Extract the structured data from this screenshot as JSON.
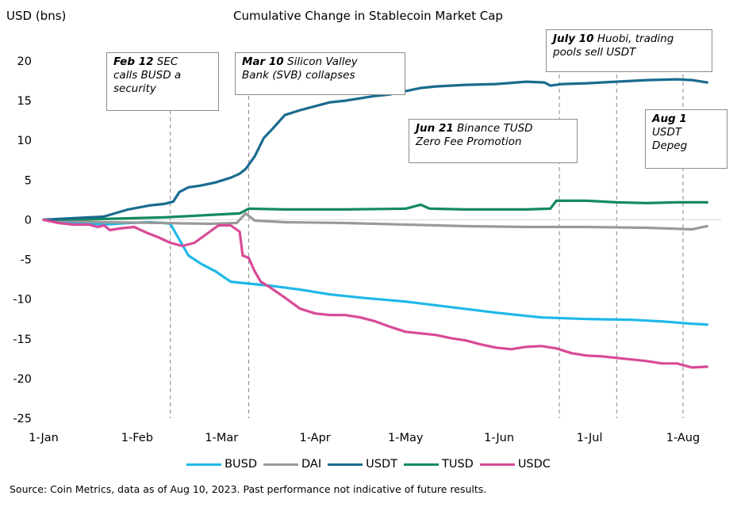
{
  "chart_data": {
    "type": "line",
    "title": "Cumulative Change in Stablecoin Market Cap",
    "ylabel": "USD (bns)",
    "xlabel": "",
    "ylim": [
      -25,
      20
    ],
    "yticks": [
      "20",
      "15",
      "10",
      "5",
      "0",
      "-5",
      "-10",
      "-15",
      "-20",
      "-25"
    ],
    "xlim": [
      0,
      222
    ],
    "xticks": [
      {
        "day": 0,
        "label": "1-Jan"
      },
      {
        "day": 31,
        "label": "1-Feb"
      },
      {
        "day": 59,
        "label": "1-Mar"
      },
      {
        "day": 90,
        "label": "1-Apr"
      },
      {
        "day": 120,
        "label": "1-May"
      },
      {
        "day": 151,
        "label": "1-Jun"
      },
      {
        "day": 181,
        "label": "1-Jul"
      },
      {
        "day": 212,
        "label": "1-Aug"
      }
    ],
    "series": [
      {
        "name": "BUSD",
        "color": "#1fb8e8",
        "points": [
          [
            0,
            0
          ],
          [
            10,
            -0.3
          ],
          [
            20,
            -0.6
          ],
          [
            28,
            -0.4
          ],
          [
            35,
            -0.3
          ],
          [
            40,
            -0.4
          ],
          [
            42,
            -0.5
          ],
          [
            45,
            -2.5
          ],
          [
            48,
            -4.5
          ],
          [
            52,
            -5.5
          ],
          [
            57,
            -6.5
          ],
          [
            62,
            -7.8
          ],
          [
            67,
            -8.0
          ],
          [
            75,
            -8.3
          ],
          [
            85,
            -8.8
          ],
          [
            95,
            -9.4
          ],
          [
            105,
            -9.8
          ],
          [
            120,
            -10.3
          ],
          [
            135,
            -11
          ],
          [
            150,
            -11.7
          ],
          [
            165,
            -12.3
          ],
          [
            180,
            -12.5
          ],
          [
            195,
            -12.6
          ],
          [
            205,
            -12.8
          ],
          [
            215,
            -13.1
          ],
          [
            220,
            -13.2
          ]
        ]
      },
      {
        "name": "DAI",
        "color": "#9a9a9a",
        "points": [
          [
            0,
            0
          ],
          [
            20,
            -0.3
          ],
          [
            40,
            -0.4
          ],
          [
            55,
            -0.5
          ],
          [
            64,
            -0.4
          ],
          [
            67,
            0.8
          ],
          [
            70,
            -0.1
          ],
          [
            80,
            -0.3
          ],
          [
            100,
            -0.4
          ],
          [
            120,
            -0.6
          ],
          [
            140,
            -0.8
          ],
          [
            160,
            -0.9
          ],
          [
            180,
            -0.9
          ],
          [
            200,
            -1.0
          ],
          [
            215,
            -1.2
          ],
          [
            220,
            -0.8
          ]
        ]
      },
      {
        "name": "USDT",
        "color": "#1a6b8f",
        "points": [
          [
            0,
            0
          ],
          [
            10,
            0.2
          ],
          [
            20,
            0.4
          ],
          [
            28,
            1.3
          ],
          [
            35,
            1.8
          ],
          [
            40,
            2.0
          ],
          [
            43,
            2.3
          ],
          [
            45,
            3.5
          ],
          [
            48,
            4.1
          ],
          [
            52,
            4.3
          ],
          [
            57,
            4.7
          ],
          [
            62,
            5.3
          ],
          [
            65,
            5.8
          ],
          [
            67,
            6.4
          ],
          [
            70,
            8.0
          ],
          [
            73,
            10.3
          ],
          [
            76,
            11.5
          ],
          [
            80,
            13.2
          ],
          [
            85,
            13.8
          ],
          [
            90,
            14.3
          ],
          [
            95,
            14.8
          ],
          [
            100,
            15.0
          ],
          [
            105,
            15.3
          ],
          [
            110,
            15.6
          ],
          [
            115,
            15.8
          ],
          [
            120,
            16.2
          ],
          [
            125,
            16.6
          ],
          [
            130,
            16.8
          ],
          [
            135,
            16.9
          ],
          [
            140,
            17.0
          ],
          [
            150,
            17.1
          ],
          [
            160,
            17.4
          ],
          [
            166,
            17.3
          ],
          [
            168,
            16.9
          ],
          [
            172,
            17.1
          ],
          [
            180,
            17.2
          ],
          [
            190,
            17.4
          ],
          [
            200,
            17.6
          ],
          [
            210,
            17.7
          ],
          [
            215,
            17.6
          ],
          [
            220,
            17.3
          ]
        ]
      },
      {
        "name": "TUSD",
        "color": "#158a5e",
        "points": [
          [
            0,
            0
          ],
          [
            20,
            0.1
          ],
          [
            40,
            0.3
          ],
          [
            55,
            0.6
          ],
          [
            65,
            0.8
          ],
          [
            68,
            1.4
          ],
          [
            80,
            1.3
          ],
          [
            100,
            1.3
          ],
          [
            120,
            1.4
          ],
          [
            125,
            1.9
          ],
          [
            128,
            1.4
          ],
          [
            140,
            1.3
          ],
          [
            160,
            1.3
          ],
          [
            168,
            1.4
          ],
          [
            170,
            2.4
          ],
          [
            180,
            2.4
          ],
          [
            190,
            2.2
          ],
          [
            200,
            2.1
          ],
          [
            210,
            2.2
          ],
          [
            220,
            2.2
          ]
        ]
      },
      {
        "name": "USDC",
        "color": "#d84a96",
        "points": [
          [
            0,
            0
          ],
          [
            5,
            -0.4
          ],
          [
            10,
            -0.6
          ],
          [
            15,
            -0.6
          ],
          [
            18,
            -0.9
          ],
          [
            20,
            -0.7
          ],
          [
            22,
            -1.3
          ],
          [
            25,
            -1.1
          ],
          [
            30,
            -0.9
          ],
          [
            34,
            -1.6
          ],
          [
            38,
            -2.2
          ],
          [
            42,
            -2.9
          ],
          [
            46,
            -3.3
          ],
          [
            50,
            -2.9
          ],
          [
            54,
            -1.8
          ],
          [
            58,
            -0.7
          ],
          [
            62,
            -0.7
          ],
          [
            65,
            -1.5
          ],
          [
            66,
            -4.5
          ],
          [
            68,
            -4.8
          ],
          [
            70,
            -6.5
          ],
          [
            72,
            -7.8
          ],
          [
            75,
            -8.5
          ],
          [
            80,
            -9.8
          ],
          [
            85,
            -11.2
          ],
          [
            90,
            -11.8
          ],
          [
            95,
            -12
          ],
          [
            100,
            -12
          ],
          [
            105,
            -12.3
          ],
          [
            110,
            -12.8
          ],
          [
            115,
            -13.5
          ],
          [
            120,
            -14.1
          ],
          [
            125,
            -14.3
          ],
          [
            130,
            -14.5
          ],
          [
            135,
            -14.9
          ],
          [
            140,
            -15.2
          ],
          [
            145,
            -15.7
          ],
          [
            150,
            -16.1
          ],
          [
            155,
            -16.3
          ],
          [
            160,
            -16.0
          ],
          [
            165,
            -15.9
          ],
          [
            170,
            -16.2
          ],
          [
            175,
            -16.8
          ],
          [
            180,
            -17.1
          ],
          [
            185,
            -17.2
          ],
          [
            190,
            -17.4
          ],
          [
            195,
            -17.6
          ],
          [
            200,
            -17.8
          ],
          [
            205,
            -18.1
          ],
          [
            210,
            -18.1
          ],
          [
            215,
            -18.6
          ],
          [
            220,
            -18.5
          ]
        ]
      }
    ],
    "events": [
      {
        "day": 42,
        "bold": "Feb 12",
        "text": "SEC calls BUSD a security"
      },
      {
        "day": 68,
        "bold": "Mar 10",
        "text": "Silicon Valley Bank (SVB) collapses"
      },
      {
        "day": 171,
        "bold": "Jun 21",
        "text": "Binance TUSD Zero Fee Promotion"
      },
      {
        "day": 190,
        "bold": "July 10",
        "text": "Huobi, trading pools sell USDT"
      },
      {
        "day": 212,
        "bold": "Aug 1",
        "text": "USDT Depeg"
      }
    ]
  },
  "annotations": {
    "feb12": {
      "bold": "Feb 12",
      "line1": " SEC",
      "line2": "calls BUSD a",
      "line3": "security"
    },
    "mar10": {
      "bold": "Mar 10",
      "line1": " Silicon Valley",
      "line2": "Bank (SVB) collapses"
    },
    "jun21": {
      "bold": "Jun 21",
      "line1": " Binance TUSD",
      "line2": "Zero Fee Promotion"
    },
    "jul10": {
      "bold": "July 10",
      "line1": " Huobi, trading",
      "line2": "pools sell USDT"
    },
    "aug1": {
      "bold": "Aug 1",
      "line2": "USDT",
      "line3": "Depeg"
    }
  },
  "legend": {
    "busd": {
      "label": "BUSD",
      "color": "#1fb8e8"
    },
    "dai": {
      "label": "DAI",
      "color": "#9a9a9a"
    },
    "usdt": {
      "label": "USDT",
      "color": "#1a6b8f"
    },
    "tusd": {
      "label": "TUSD",
      "color": "#158a5e"
    },
    "usdc": {
      "label": "USDC",
      "color": "#d84a96"
    }
  },
  "source_text": "Source: Coin Metrics, data as of Aug 10, 2023. Past performance not indicative of future results."
}
